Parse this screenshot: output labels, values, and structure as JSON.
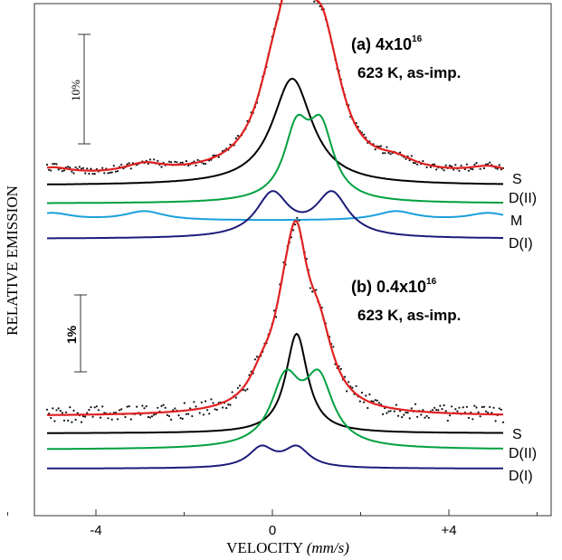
{
  "chart_data": {
    "type": "line",
    "xlabel": "VELOCITY",
    "xlabel_unit": "(mm/s)",
    "ylabel": "RELATIVE EMISSION",
    "xlim": [
      -7,
      7.3
    ],
    "x_ticks": [
      -4,
      0,
      4
    ],
    "x_tick_labels": [
      "-4",
      "0",
      "+4"
    ],
    "panels": [
      {
        "id": "a",
        "title": "(a) 4x10",
        "title_sup": "16",
        "subtitle": "623 K, as-imp.",
        "scale_label": "10%",
        "series": [
          {
            "name": "S",
            "color": "#000000",
            "peaks": [
              {
                "center": 0.45,
                "height": 118,
                "width": 0.55
              }
            ]
          },
          {
            "name": "D(II)",
            "color": "#00a040",
            "peaks": [
              {
                "center": 0.55,
                "height": 75,
                "width": 0.35
              },
              {
                "center": 1.1,
                "height": 75,
                "width": 0.35
              }
            ]
          },
          {
            "name": "M",
            "color": "#1a9fdb",
            "peaks": [
              {
                "center": -5.0,
                "height": 8,
                "width": 0.55
              },
              {
                "center": -2.9,
                "height": 10,
                "width": 0.55
              },
              {
                "center": 2.8,
                "height": 10,
                "width": 0.55
              },
              {
                "center": 4.9,
                "height": 8,
                "width": 0.55
              }
            ]
          },
          {
            "name": "D(I)",
            "color": "#1c1c7a",
            "peaks": [
              {
                "center": 0.0,
                "height": 48,
                "width": 0.45
              },
              {
                "center": 1.35,
                "height": 48,
                "width": 0.45
              }
            ]
          }
        ],
        "fit_color": "#e02020"
      },
      {
        "id": "b",
        "title": "(b) 0.4x10",
        "title_sup": "16",
        "subtitle": "623 K, as-imp.",
        "scale_label": "1%",
        "series": [
          {
            "name": "S",
            "color": "#000000",
            "peaks": [
              {
                "center": 0.55,
                "height": 110,
                "width": 0.3
              }
            ]
          },
          {
            "name": "D(II)",
            "color": "#00a040",
            "peaks": [
              {
                "center": 0.3,
                "height": 72,
                "width": 0.4
              },
              {
                "center": 1.05,
                "height": 72,
                "width": 0.4
              }
            ]
          },
          {
            "name": "D(I)",
            "color": "#1c1c7a",
            "peaks": [
              {
                "center": -0.25,
                "height": 22,
                "width": 0.35
              },
              {
                "center": 0.55,
                "height": 22,
                "width": 0.35
              }
            ]
          }
        ],
        "fit_color": "#e02020"
      }
    ]
  }
}
